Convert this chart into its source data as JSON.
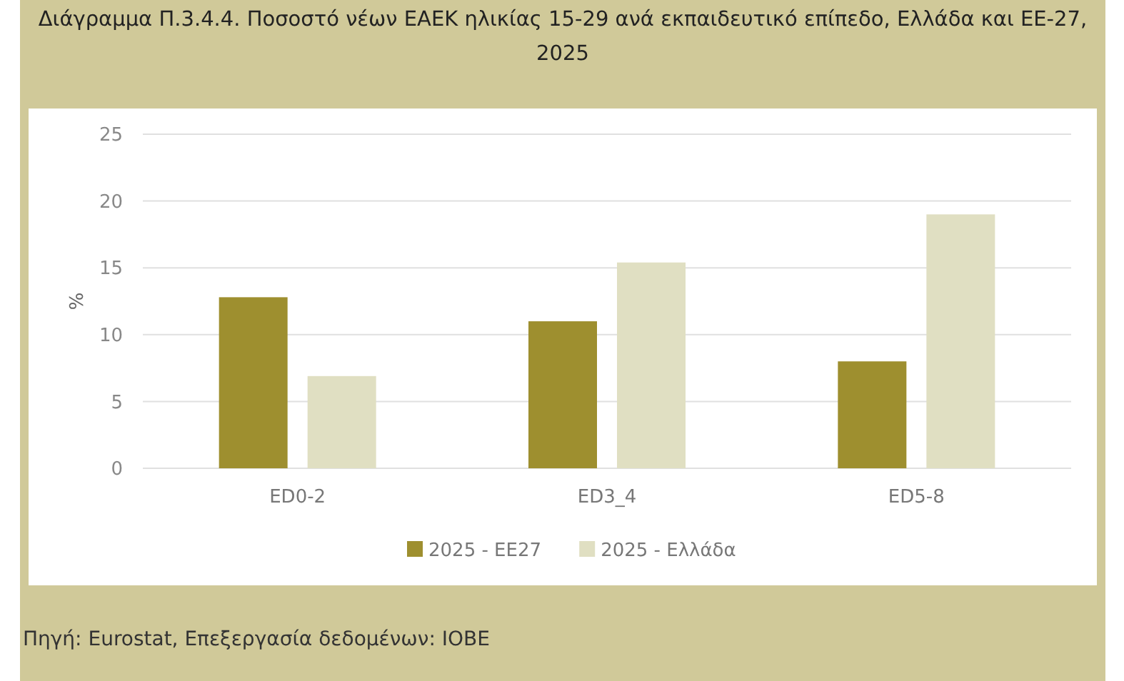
{
  "chart_data": {
    "type": "bar",
    "title": "Διάγραμμα Π.3.4.4. Ποσοστό νέων ΕΑΕΚ ηλικίας 15-29 ανά εκπαιδευτικό επίπεδο, Ελλάδα και ΕΕ-27, 2025",
    "ylabel": "%",
    "categories": [
      "ED0-2",
      "ED3_4",
      "ED5-8"
    ],
    "series": [
      {
        "name": "2025 - ΕΕ27",
        "color": "#9e8f2f",
        "values": [
          12.8,
          11.0,
          8.0
        ]
      },
      {
        "name": "2025 - Ελλάδα",
        "color": "#e0dfc2",
        "values": [
          6.9,
          15.4,
          19.0
        ]
      }
    ],
    "ylim": [
      0,
      25
    ],
    "yticks": [
      0,
      5,
      10,
      15,
      20,
      25
    ],
    "grid": "y",
    "legend": "bottom",
    "annotations": [
      "Πηγή: Eurostat, Επεξεργασία δεδομένων: ΙΟΒΕ"
    ]
  }
}
